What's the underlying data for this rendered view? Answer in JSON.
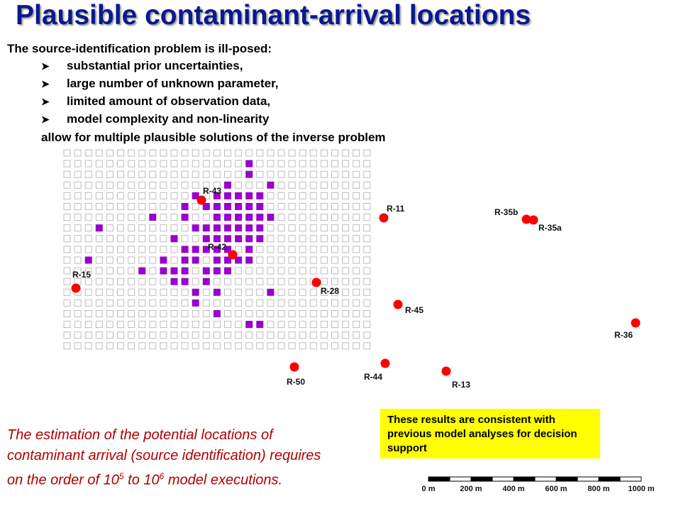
{
  "title": "Plausible contaminant-arrival locations",
  "intro": "The source-identification problem is ill-posed:",
  "bullets": [
    "substantial prior uncertainties,",
    "large number of unknown parameter,",
    "limited amount of observation data,",
    "model complexity and non-linearity"
  ],
  "conclusion": "allow for multiple plausible solutions of the inverse problem",
  "note": {
    "part1": "The estimation of the potential locations of contaminant arrival (source identification) requires on the order of 10",
    "exp1": "5",
    "part2": " to 10",
    "exp2": "6",
    "part3": " model executions."
  },
  "callout": "These results are consistent with previous model analyses for decision support",
  "scale_bar": {
    "labels": [
      "0 m",
      "200 m",
      "400 m",
      "600 m",
      "800 m",
      "1000 m"
    ]
  },
  "colors": {
    "title": "#0a1a8c",
    "well": "#ff0000",
    "plausible_cell": "#9900cc",
    "note": "#b00000",
    "callout_bg": "#ffff00"
  },
  "wells": [
    {
      "name": "R-43"
    },
    {
      "name": "R-42"
    },
    {
      "name": "R-15"
    },
    {
      "name": "R-28"
    },
    {
      "name": "R-11"
    },
    {
      "name": "R-35b"
    },
    {
      "name": "R-35a"
    },
    {
      "name": "R-45"
    },
    {
      "name": "R-36"
    },
    {
      "name": "R-50"
    },
    {
      "name": "R-44"
    },
    {
      "name": "R-13"
    }
  ]
}
